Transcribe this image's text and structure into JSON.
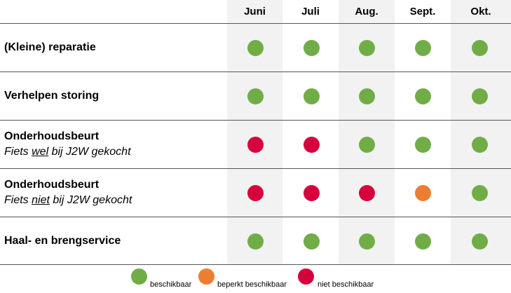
{
  "colors": {
    "available": "#70ad47",
    "limited": "#ed7d31",
    "unavailable": "#d5003c",
    "shade": "#f2f2f2",
    "line": "#555555"
  },
  "months": [
    "Juni",
    "Juli",
    "Aug.",
    "Sept.",
    "Okt."
  ],
  "rows": [
    {
      "title": "(Kleine) reparatie",
      "sub_pre": "",
      "sub_em": "",
      "sub_post": "",
      "status": [
        "available",
        "available",
        "available",
        "available",
        "available"
      ]
    },
    {
      "title": "Verhelpen storing",
      "sub_pre": "",
      "sub_em": "",
      "sub_post": "",
      "status": [
        "available",
        "available",
        "available",
        "available",
        "available"
      ]
    },
    {
      "title": "Onderhoudsbeurt",
      "sub_pre": "Fiets ",
      "sub_em": "wel",
      "sub_post": " bij J2W gekocht",
      "status": [
        "unavailable",
        "unavailable",
        "available",
        "available",
        "available"
      ]
    },
    {
      "title": "Onderhoudsbeurt",
      "sub_pre": "Fiets ",
      "sub_em": "niet",
      "sub_post": " bij J2W gekocht",
      "status": [
        "unavailable",
        "unavailable",
        "unavailable",
        "limited",
        "available"
      ]
    },
    {
      "title": "Haal- en brengservice",
      "sub_pre": "",
      "sub_em": "",
      "sub_post": "",
      "status": [
        "available",
        "available",
        "available",
        "available",
        "available"
      ]
    }
  ],
  "legend": [
    {
      "key": "available",
      "label": "beschikbaar"
    },
    {
      "key": "limited",
      "label": "beperkt beschikbaar"
    },
    {
      "key": "unavailable",
      "label": "niet beschikbaar"
    }
  ]
}
